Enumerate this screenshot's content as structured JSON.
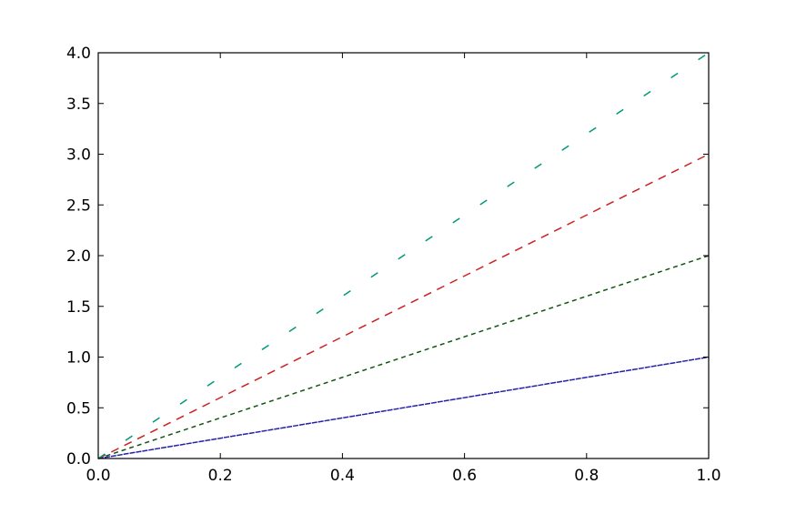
{
  "chart_data": {
    "type": "line",
    "title": "",
    "xlabel": "",
    "ylabel": "",
    "xlim": [
      0.0,
      1.0
    ],
    "ylim": [
      0.0,
      4.0
    ],
    "grid": false,
    "x_ticks": [
      "0.0",
      "0.2",
      "0.4",
      "0.6",
      "0.8",
      "1.0"
    ],
    "y_ticks": [
      "0.0",
      "0.5",
      "1.0",
      "1.5",
      "2.0",
      "2.5",
      "3.0",
      "3.5",
      "4.0"
    ],
    "series": [
      {
        "x": [
          0.0,
          1.0
        ],
        "y": [
          0.0,
          1.0
        ],
        "color": "#2222aa",
        "linestyle": "dashed",
        "dash": "tight"
      },
      {
        "x": [
          0.0,
          1.0
        ],
        "y": [
          0.0,
          2.0
        ],
        "color": "#115511",
        "linestyle": "dashed",
        "dash": "small"
      },
      {
        "x": [
          0.0,
          1.0
        ],
        "y": [
          0.0,
          3.0
        ],
        "color": "#cc2222",
        "linestyle": "dashed",
        "dash": "medium"
      },
      {
        "x": [
          0.0,
          1.0
        ],
        "y": [
          0.0,
          4.0
        ],
        "color": "#009977",
        "linestyle": "dashed",
        "dash": "wide"
      }
    ]
  }
}
